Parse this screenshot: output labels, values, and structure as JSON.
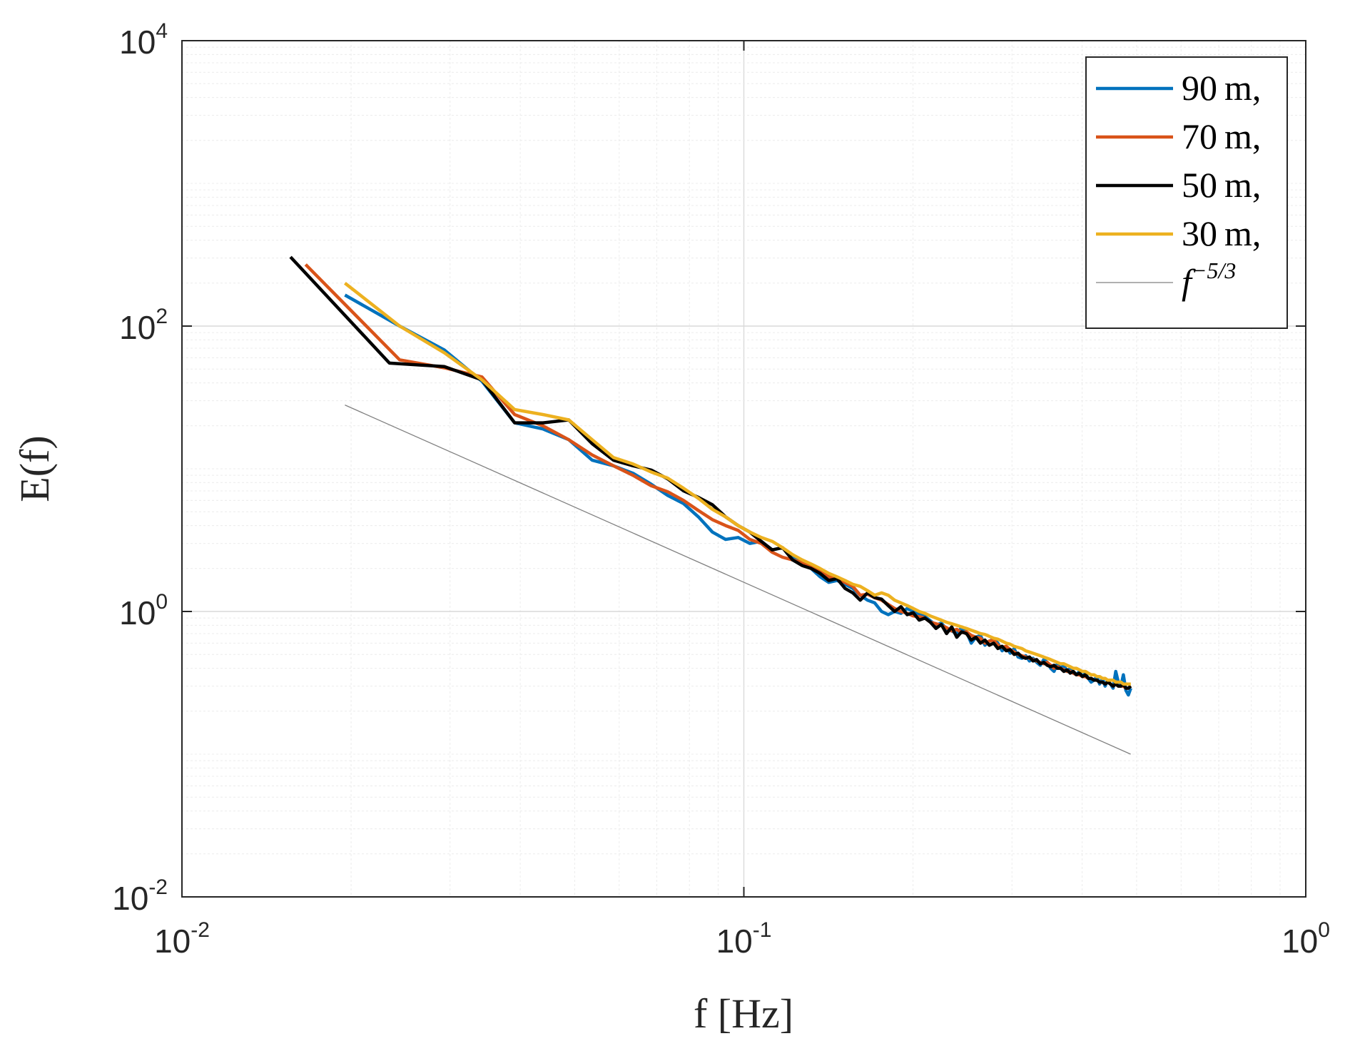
{
  "chart_data": {
    "type": "line",
    "xlabel": "f [Hz]",
    "ylabel": "E(f)",
    "xscale": "log",
    "yscale": "log",
    "xlim": [
      0.01,
      1
    ],
    "ylim": [
      0.01,
      10000
    ],
    "grid": true,
    "minor_grid": true,
    "legend_position": "top-right",
    "x_ticks": [
      {
        "value": 0.01,
        "base": "10",
        "exp": "-2"
      },
      {
        "value": 0.1,
        "base": "10",
        "exp": "-1"
      },
      {
        "value": 1,
        "base": "10",
        "exp": "0"
      }
    ],
    "y_ticks": [
      {
        "value": 0.01,
        "base": "10",
        "exp": "-2"
      },
      {
        "value": 1,
        "base": "10",
        "exp": "0"
      },
      {
        "value": 100,
        "base": "10",
        "exp": "2"
      },
      {
        "value": 10000,
        "base": "10",
        "exp": "4"
      }
    ],
    "series": [
      {
        "name": "90 m,",
        "color": "#0072BD",
        "x": [
          0.0195,
          0.0244,
          0.0293,
          0.0342,
          0.0391,
          0.0439,
          0.0488,
          0.0537,
          0.0586,
          0.0635,
          0.0684,
          0.0732,
          0.0781,
          0.083,
          0.0879,
          0.0928,
          0.0977,
          0.1025,
          0.1074,
          0.1123,
          0.1172,
          0.1221,
          0.127,
          0.1318,
          0.1367,
          0.1416,
          0.1465,
          0.1514,
          0.1563,
          0.1611,
          0.166,
          0.1709,
          0.1758,
          0.1807,
          0.1855,
          0.1904,
          0.1953,
          0.2002,
          0.2051,
          0.21,
          0.2148,
          0.2197,
          0.2246,
          0.2295,
          0.2344,
          0.2393,
          0.2441,
          0.249,
          0.2539,
          0.2588,
          0.2637,
          0.2686,
          0.2734,
          0.2783,
          0.2832,
          0.2881,
          0.293,
          0.2979,
          0.3027,
          0.3076,
          0.3125,
          0.3174,
          0.3223,
          0.3271,
          0.332,
          0.3369,
          0.3418,
          0.3467,
          0.3516,
          0.3564,
          0.3613,
          0.3662,
          0.3711,
          0.376,
          0.3809,
          0.3857,
          0.3906,
          0.3955,
          0.4004,
          0.4053,
          0.4102,
          0.415,
          0.4199,
          0.4248,
          0.4297,
          0.4346,
          0.4395,
          0.4443,
          0.4492,
          0.4541,
          0.459,
          0.4639,
          0.4688,
          0.4736,
          0.4785,
          0.4834,
          0.4883
        ],
        "y": [
          165,
          100,
          68,
          41,
          21,
          19,
          16,
          11.5,
          10.5,
          9.3,
          7.8,
          6.5,
          5.7,
          4.6,
          3.6,
          3.2,
          3.3,
          3.0,
          3.1,
          2.7,
          2.8,
          2.4,
          2.2,
          2.0,
          1.75,
          1.6,
          1.65,
          1.55,
          1.45,
          1.3,
          1.2,
          1.15,
          1.0,
          0.95,
          1.0,
          0.97,
          1.05,
          1.0,
          0.96,
          0.92,
          0.86,
          0.8,
          0.83,
          0.75,
          0.73,
          0.7,
          0.77,
          0.72,
          0.6,
          0.66,
          0.68,
          0.58,
          0.62,
          0.64,
          0.6,
          0.53,
          0.56,
          0.51,
          0.55,
          0.48,
          0.47,
          0.49,
          0.45,
          0.47,
          0.44,
          0.42,
          0.46,
          0.44,
          0.4,
          0.38,
          0.43,
          0.4,
          0.42,
          0.38,
          0.4,
          0.37,
          0.36,
          0.38,
          0.35,
          0.37,
          0.34,
          0.32,
          0.33,
          0.35,
          0.31,
          0.34,
          0.3,
          0.33,
          0.31,
          0.29,
          0.38,
          0.32,
          0.3,
          0.36,
          0.28,
          0.26,
          0.29
        ]
      },
      {
        "name": "70 m,",
        "color": "#D95319",
        "x": [
          0.0166,
          0.0244,
          0.0293,
          0.0342,
          0.0391,
          0.0439,
          0.0488,
          0.0537,
          0.0586,
          0.0635,
          0.0684,
          0.0732,
          0.0781,
          0.083,
          0.0879,
          0.0928,
          0.0977,
          0.1025,
          0.1074,
          0.1123,
          0.1172,
          0.1221,
          0.127,
          0.1318,
          0.1367,
          0.1416,
          0.1465,
          0.1514,
          0.1563,
          0.1611,
          0.166,
          0.1709,
          0.1758,
          0.1807,
          0.1855,
          0.1904,
          0.1953,
          0.2002,
          0.2051,
          0.21,
          0.2148,
          0.2197,
          0.2246,
          0.2295,
          0.2344,
          0.2393,
          0.2441,
          0.249,
          0.2539,
          0.2588,
          0.2637,
          0.2686,
          0.2734,
          0.2783,
          0.2832,
          0.2881,
          0.293,
          0.2979,
          0.3027,
          0.3076,
          0.3125,
          0.3174,
          0.3223,
          0.3271,
          0.332,
          0.3369,
          0.3418,
          0.3467,
          0.3516,
          0.3564,
          0.3613,
          0.3662,
          0.3711,
          0.376,
          0.3809,
          0.3857,
          0.3906,
          0.3955,
          0.4004,
          0.4053,
          0.4102,
          0.415,
          0.4199,
          0.4248,
          0.4297,
          0.4346,
          0.4395,
          0.4443,
          0.4492,
          0.4541,
          0.459,
          0.4639,
          0.4688,
          0.4736,
          0.4785,
          0.4834,
          0.4883
        ],
        "y": [
          270,
          58,
          51,
          44,
          24,
          20,
          16,
          12.5,
          10.5,
          9.0,
          7.6,
          6.9,
          6.0,
          5.1,
          4.4,
          4.0,
          3.7,
          3.2,
          3.0,
          2.6,
          2.4,
          2.3,
          2.2,
          2.05,
          1.9,
          1.75,
          1.7,
          1.6,
          1.5,
          1.3,
          1.32,
          1.25,
          1.2,
          1.12,
          1.05,
          1.0,
          0.97,
          0.93,
          0.92,
          0.9,
          0.84,
          0.82,
          0.8,
          0.77,
          0.73,
          0.75,
          0.71,
          0.72,
          0.68,
          0.66,
          0.65,
          0.6,
          0.62,
          0.63,
          0.58,
          0.56,
          0.57,
          0.54,
          0.52,
          0.5,
          0.49,
          0.48,
          0.47,
          0.46,
          0.45,
          0.44,
          0.43,
          0.44,
          0.42,
          0.4,
          0.41,
          0.4,
          0.39,
          0.38,
          0.38,
          0.37,
          0.36,
          0.36,
          0.35,
          0.35,
          0.34,
          0.34,
          0.33,
          0.33,
          0.32,
          0.32,
          0.31,
          0.32,
          0.31,
          0.3,
          0.31,
          0.3,
          0.3,
          0.3,
          0.29,
          0.29,
          0.3
        ]
      },
      {
        "name": "50 m,",
        "color": "#000000",
        "x": [
          0.0156,
          0.0234,
          0.0293,
          0.0342,
          0.0391,
          0.0439,
          0.0488,
          0.0537,
          0.0586,
          0.0635,
          0.0684,
          0.0732,
          0.0781,
          0.083,
          0.0879,
          0.0928,
          0.0977,
          0.1025,
          0.1074,
          0.1123,
          0.1172,
          0.1221,
          0.127,
          0.1318,
          0.1367,
          0.1416,
          0.1465,
          0.1514,
          0.1563,
          0.1611,
          0.166,
          0.1709,
          0.1758,
          0.1807,
          0.1855,
          0.1904,
          0.1953,
          0.2002,
          0.2051,
          0.21,
          0.2148,
          0.2197,
          0.2246,
          0.2295,
          0.2344,
          0.2393,
          0.2441,
          0.249,
          0.2539,
          0.2588,
          0.2637,
          0.2686,
          0.2734,
          0.2783,
          0.2832,
          0.2881,
          0.293,
          0.2979,
          0.3027,
          0.3076,
          0.3125,
          0.3174,
          0.3223,
          0.3271,
          0.332,
          0.3369,
          0.3418,
          0.3467,
          0.3516,
          0.3564,
          0.3613,
          0.3662,
          0.3711,
          0.376,
          0.3809,
          0.3857,
          0.3906,
          0.3955,
          0.4004,
          0.4053,
          0.4102,
          0.415,
          0.4199,
          0.4248,
          0.4297,
          0.4346,
          0.4395,
          0.4443,
          0.4492,
          0.4541,
          0.459,
          0.4639,
          0.4688,
          0.4736,
          0.4785,
          0.4834,
          0.4883
        ],
        "y": [
          305,
          55,
          52,
          42,
          21,
          21,
          22,
          15,
          11.5,
          10.5,
          9.8,
          8.5,
          7.0,
          6.3,
          5.6,
          4.6,
          4.0,
          3.6,
          3.1,
          2.7,
          2.8,
          2.3,
          2.1,
          2.0,
          1.85,
          1.65,
          1.7,
          1.45,
          1.35,
          1.2,
          1.35,
          1.25,
          1.22,
          1.1,
          1.0,
          1.08,
          0.95,
          0.98,
          0.87,
          0.9,
          0.84,
          0.76,
          0.81,
          0.7,
          0.78,
          0.66,
          0.72,
          0.7,
          0.63,
          0.66,
          0.6,
          0.63,
          0.58,
          0.6,
          0.55,
          0.57,
          0.53,
          0.54,
          0.5,
          0.51,
          0.48,
          0.47,
          0.48,
          0.45,
          0.46,
          0.43,
          0.44,
          0.42,
          0.41,
          0.42,
          0.4,
          0.4,
          0.38,
          0.39,
          0.37,
          0.38,
          0.36,
          0.37,
          0.35,
          0.36,
          0.34,
          0.34,
          0.33,
          0.33,
          0.32,
          0.32,
          0.31,
          0.32,
          0.31,
          0.3,
          0.31,
          0.3,
          0.3,
          0.31,
          0.29,
          0.29,
          0.3
        ]
      },
      {
        "name": "30 m,",
        "color": "#EDB120",
        "x": [
          0.0195,
          0.0244,
          0.0293,
          0.0342,
          0.0391,
          0.0439,
          0.0488,
          0.0537,
          0.0586,
          0.0635,
          0.0684,
          0.0732,
          0.0781,
          0.083,
          0.0879,
          0.0928,
          0.0977,
          0.1025,
          0.1074,
          0.1123,
          0.1172,
          0.1221,
          0.127,
          0.1318,
          0.1367,
          0.1416,
          0.1465,
          0.1514,
          0.1563,
          0.1611,
          0.166,
          0.1709,
          0.1758,
          0.1807,
          0.1855,
          0.1904,
          0.1953,
          0.2002,
          0.2051,
          0.21,
          0.2148,
          0.2197,
          0.2246,
          0.2295,
          0.2344,
          0.2393,
          0.2441,
          0.249,
          0.2539,
          0.2588,
          0.2637,
          0.2686,
          0.2734,
          0.2783,
          0.2832,
          0.2881,
          0.293,
          0.2979,
          0.3027,
          0.3076,
          0.3125,
          0.3174,
          0.3223,
          0.3271,
          0.332,
          0.3369,
          0.3418,
          0.3467,
          0.3516,
          0.3564,
          0.3613,
          0.3662,
          0.3711,
          0.376,
          0.3809,
          0.3857,
          0.3906,
          0.3955,
          0.4004,
          0.4053,
          0.4102,
          0.415,
          0.4199,
          0.4248,
          0.4297,
          0.4346,
          0.4395,
          0.4443,
          0.4492,
          0.4541,
          0.459,
          0.4639,
          0.4688,
          0.4736,
          0.4785,
          0.4834,
          0.4883
        ],
        "y": [
          200,
          100,
          65,
          42,
          26,
          24,
          22,
          16,
          12,
          10.8,
          9.5,
          8.6,
          7.3,
          6.2,
          5.2,
          4.6,
          4.0,
          3.6,
          3.3,
          3.1,
          2.8,
          2.5,
          2.3,
          2.15,
          2.0,
          1.85,
          1.75,
          1.65,
          1.55,
          1.5,
          1.4,
          1.3,
          1.35,
          1.3,
          1.2,
          1.15,
          1.1,
          1.05,
          1.0,
          0.97,
          0.93,
          0.9,
          0.87,
          0.84,
          0.82,
          0.8,
          0.78,
          0.76,
          0.74,
          0.72,
          0.7,
          0.69,
          0.67,
          0.65,
          0.64,
          0.62,
          0.6,
          0.59,
          0.57,
          0.56,
          0.55,
          0.53,
          0.52,
          0.51,
          0.5,
          0.49,
          0.48,
          0.47,
          0.46,
          0.45,
          0.44,
          0.43,
          0.43,
          0.42,
          0.41,
          0.4,
          0.4,
          0.39,
          0.38,
          0.38,
          0.37,
          0.36,
          0.36,
          0.35,
          0.35,
          0.34,
          0.34,
          0.33,
          0.33,
          0.33,
          0.32,
          0.32,
          0.32,
          0.31,
          0.31,
          0.31,
          0.31
        ]
      },
      {
        "name": "f^{-5/3}",
        "color": "#808080",
        "x": [
          0.0195,
          0.488
        ],
        "y": [
          28,
          0.1
        ]
      }
    ],
    "legend": [
      {
        "label": "90 m,",
        "color": "#0072BD",
        "width": 4.5
      },
      {
        "label": "70 m,",
        "color": "#D95319",
        "width": 4.5
      },
      {
        "label": "50 m,",
        "color": "#000000",
        "width": 4.5
      },
      {
        "label": "30 m,",
        "color": "#EDB120",
        "width": 4.5
      },
      {
        "label": "f",
        "sup": "−5/3",
        "color": "#808080",
        "width": 1.2
      }
    ]
  }
}
